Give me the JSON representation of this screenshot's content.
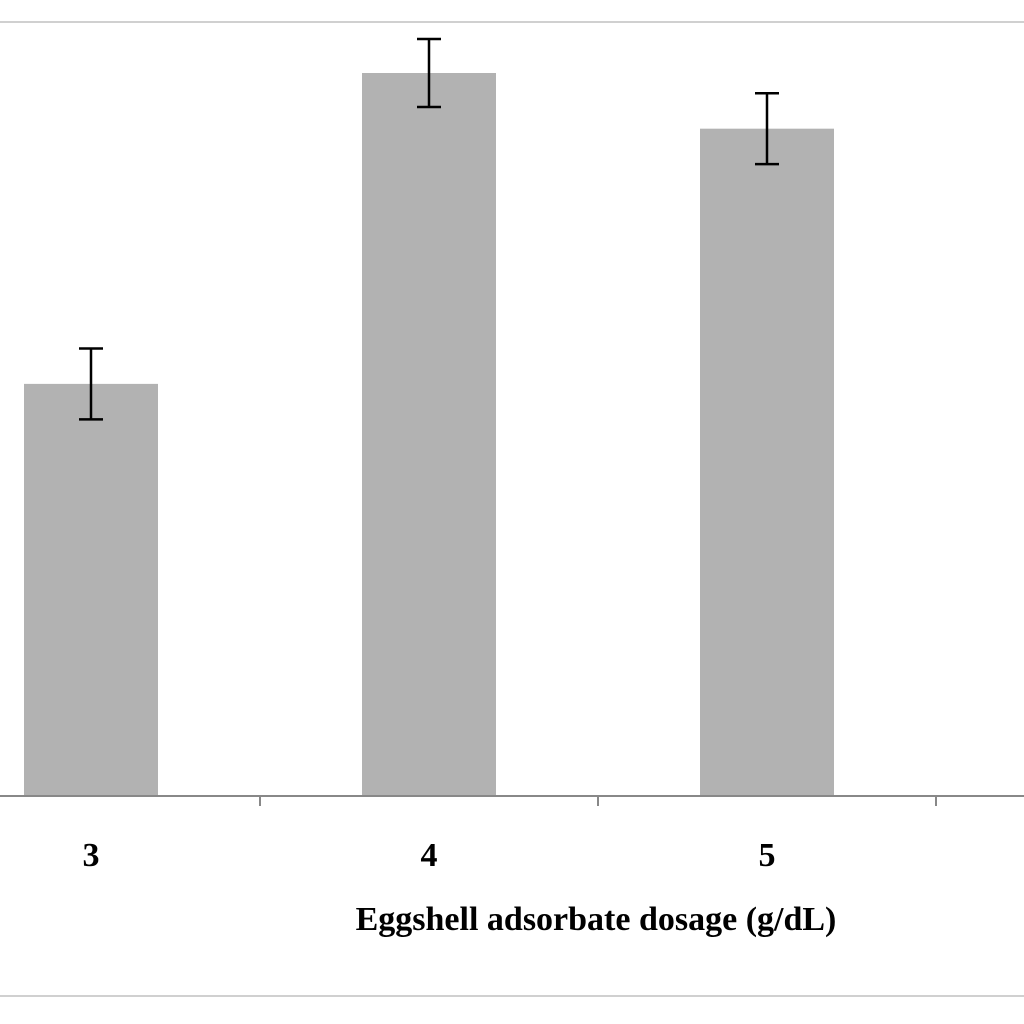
{
  "chart_data": {
    "type": "bar",
    "title": "",
    "xlabel": "Eggshell adsorbate dosage (g/dL)",
    "ylabel": "",
    "categories": [
      "3",
      "4",
      "5"
    ],
    "series": [
      {
        "values": [
          57,
          100,
          92.3
        ],
        "errors": [
          4.9,
          4.7,
          4.9
        ]
      }
    ],
    "ylim": [
      0,
      100
    ],
    "grid": false,
    "legend": "none",
    "colors": {
      "bar": "#b2b2b2",
      "error_bar": "#000000",
      "axis": "#888888",
      "border": "#d0d0d0",
      "text": "#000000"
    }
  }
}
